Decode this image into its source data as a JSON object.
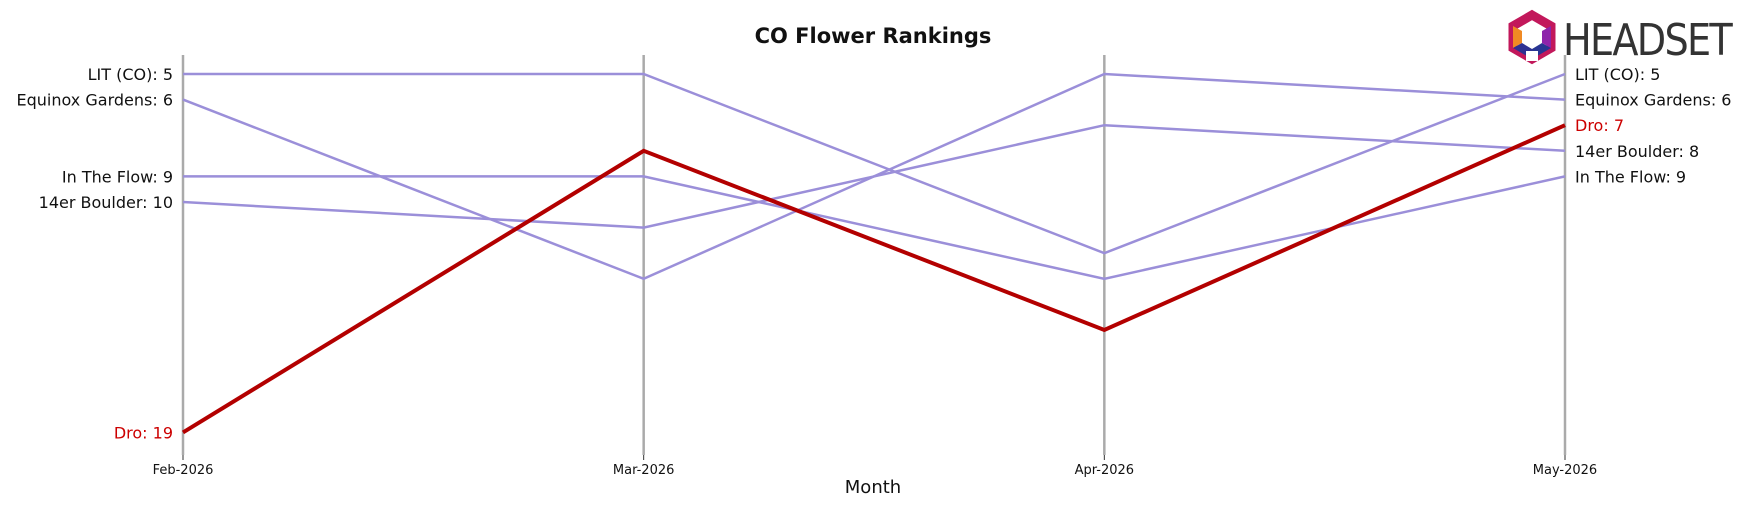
{
  "chart_data": {
    "type": "line",
    "title": "CO Flower Rankings",
    "xlabel": "Month",
    "ylabel": "",
    "x": [
      "Feb-2026",
      "Mar-2026",
      "Apr-2026",
      "May-2026"
    ],
    "y_inverted": true,
    "ylim": [
      4.4,
      19.6
    ],
    "grid": false,
    "series": [
      {
        "name": "LIT (CO)",
        "values": [
          5,
          5,
          12,
          5
        ],
        "color": "#9b8fd9",
        "highlight": false
      },
      {
        "name": "Equinox Gardens",
        "values": [
          6,
          13,
          5,
          6
        ],
        "color": "#9b8fd9",
        "highlight": false
      },
      {
        "name": "In The Flow",
        "values": [
          9,
          9,
          13,
          9
        ],
        "color": "#9b8fd9",
        "highlight": false
      },
      {
        "name": "14er Boulder",
        "values": [
          10,
          11,
          7,
          8
        ],
        "color": "#9b8fd9",
        "highlight": false
      },
      {
        "name": "Dro",
        "values": [
          19,
          8,
          15,
          7
        ],
        "color": "#b30000",
        "highlight": true
      }
    ],
    "left_labels": [
      {
        "series": "LIT (CO)",
        "text": "LIT (CO): 5"
      },
      {
        "series": "Equinox Gardens",
        "text": "Equinox Gardens: 6"
      },
      {
        "series": "In The Flow",
        "text": "In The Flow: 9"
      },
      {
        "series": "14er Boulder",
        "text": "14er Boulder: 10"
      },
      {
        "series": "Dro",
        "text": "Dro: 19"
      }
    ],
    "right_labels": [
      {
        "series": "LIT (CO)",
        "text": "LIT (CO): 5"
      },
      {
        "series": "Equinox Gardens",
        "text": "Equinox Gardens: 6"
      },
      {
        "series": "Dro",
        "text": "Dro: 7"
      },
      {
        "series": "14er Boulder",
        "text": "14er Boulder: 8"
      },
      {
        "series": "In The Flow",
        "text": "In The Flow: 9"
      }
    ]
  },
  "logo": {
    "text": "HEADSET"
  },
  "colors": {
    "axis_line": "#aaaaaa",
    "highlight_label": "#cc0000",
    "label": "#111111"
  }
}
